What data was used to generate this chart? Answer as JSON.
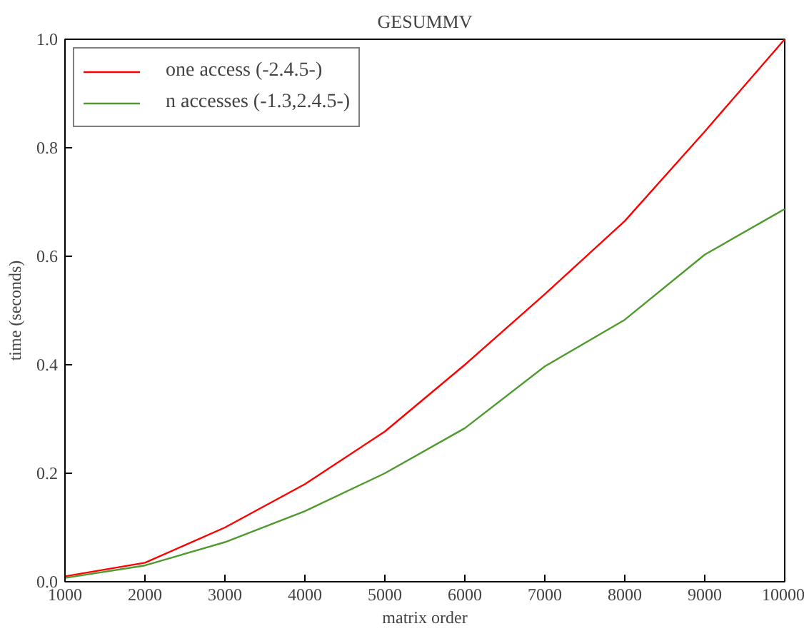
{
  "chart_data": {
    "type": "line",
    "title": "GESUMMV",
    "xlabel": "matrix order",
    "ylabel": "time (seconds)",
    "x": [
      1000,
      2000,
      3000,
      4000,
      5000,
      6000,
      7000,
      8000,
      9000,
      10000
    ],
    "series": [
      {
        "name": "one access (-2.4.5-)",
        "color": "#ff0000",
        "values": [
          0.01,
          0.035,
          0.1,
          0.18,
          0.277,
          0.4,
          0.53,
          0.665,
          0.83,
          1.0
        ]
      },
      {
        "name": "n accesses (-1.3,2.4.5-)",
        "color": "#4f9a2e",
        "values": [
          0.007,
          0.03,
          0.073,
          0.13,
          0.2,
          0.283,
          0.397,
          0.483,
          0.603,
          0.687
        ]
      }
    ],
    "xlim": [
      1000,
      10000
    ],
    "ylim": [
      0,
      1.0
    ],
    "xticks": [
      1000,
      2000,
      3000,
      4000,
      5000,
      6000,
      7000,
      8000,
      9000,
      10000
    ],
    "yticks": [
      {
        "value": 0,
        "label": "0.0"
      },
      0.2,
      0.4,
      0.6,
      0.8,
      {
        "value": 1,
        "label": "1.0"
      }
    ],
    "grid": false,
    "legend": "top left",
    "marker": "none",
    "line_style": "solid"
  }
}
